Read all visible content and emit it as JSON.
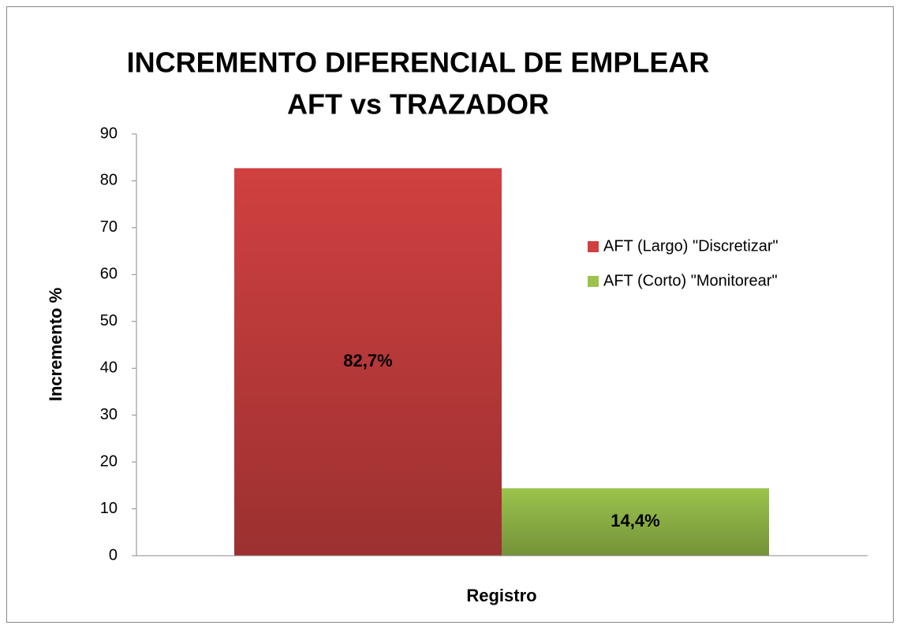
{
  "chart_data": {
    "type": "bar",
    "title": [
      "INCREMENTO DIFERENCIAL DE EMPLEAR",
      "AFT vs TRAZADOR"
    ],
    "ylabel": "Incremento %",
    "xlabel": "Registro",
    "series": [
      {
        "name": "AFT (Largo) \"Discretizar\"",
        "color": "#d04040",
        "values": [
          82.7
        ],
        "value_labels": [
          "82,7%"
        ]
      },
      {
        "name": "AFT (Corto) \"Monitorear\"",
        "color": "#9bc34c",
        "values": [
          14.4
        ],
        "value_labels": [
          "14,4%"
        ]
      }
    ],
    "ylim": [
      0,
      90
    ],
    "yticks": [
      0,
      10,
      20,
      30,
      40,
      50,
      60,
      70,
      80,
      90
    ],
    "grid": false,
    "legend": "right"
  }
}
